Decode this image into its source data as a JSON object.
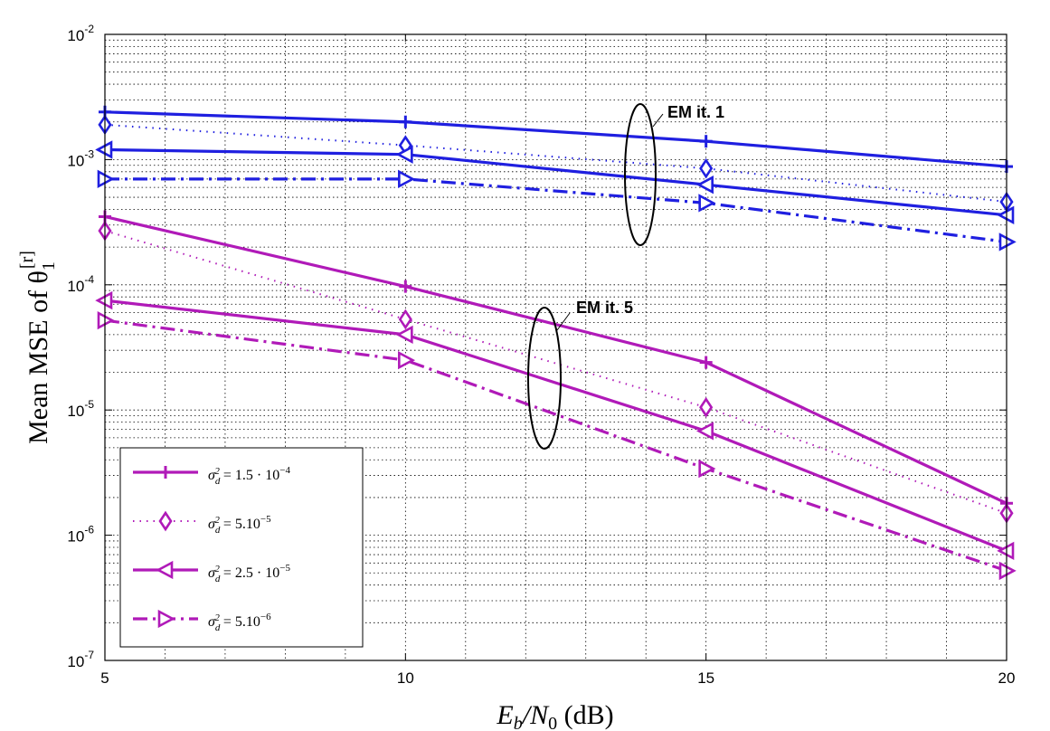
{
  "chart_data": {
    "type": "line",
    "xlabel": "E_b/N_0 (dB)",
    "xlabel_parts": {
      "main": "E",
      "sub1": "b",
      "slash": "/N",
      "sub2": "0",
      "unit": " (dB)"
    },
    "ylabel": "Mean MSE of θ_1^[r]",
    "ylabel_parts": {
      "main": "Mean MSE of θ",
      "sub": "1",
      "sup": "[r]"
    },
    "x": [
      5,
      10,
      15,
      20
    ],
    "xlim": [
      5,
      20
    ],
    "ylim": [
      1e-07,
      0.01
    ],
    "yscale": "log",
    "grid": true,
    "x_tick_labels": [
      "5",
      "10",
      "15",
      "20"
    ],
    "y_tick_labels": [
      {
        "base": "10",
        "exp": "-7"
      },
      {
        "base": "10",
        "exp": "-6"
      },
      {
        "base": "10",
        "exp": "-5"
      },
      {
        "base": "10",
        "exp": "-4"
      },
      {
        "base": "10",
        "exp": "-3"
      },
      {
        "base": "10",
        "exp": "-2"
      }
    ],
    "legend_position": "bottom-left",
    "legend": [
      {
        "label": "σ_d^2 = 1.5 · 10^-4",
        "parts": {
          "a": "σ",
          "sub": "d",
          "sup": "2",
          "b": " = 1.5 · 10",
          "exp": "−4"
        },
        "linestyle": "solid",
        "marker": "plus"
      },
      {
        "label": "σ_d^2 = 5.10^-5",
        "parts": {
          "a": "σ",
          "sub": "d",
          "sup": "2",
          "b": " = 5.10",
          "exp": "−5"
        },
        "linestyle": "dotted",
        "marker": "diamond"
      },
      {
        "label": "σ_d^2 = 2.5 · 10^-5",
        "parts": {
          "a": "σ",
          "sub": "d",
          "sup": "2",
          "b": " = 2.5 · 10",
          "exp": "−5"
        },
        "linestyle": "solid",
        "marker": "triangle-left"
      },
      {
        "label": "σ_d^2 = 5.10^-6",
        "parts": {
          "a": "σ",
          "sub": "d",
          "sup": "2",
          "b": " = 5.10",
          "exp": "−6"
        },
        "linestyle": "dashdot",
        "marker": "triangle-right"
      }
    ],
    "series": [
      {
        "name": "EM it. 1, σ_d^2 = 1.5·10^-4",
        "group": "EM it. 1",
        "color": "#1f1fe0",
        "linestyle": "solid",
        "marker": "plus",
        "values": [
          0.0024,
          0.002,
          0.0014,
          0.00088
        ]
      },
      {
        "name": "EM it. 1, σ_d^2 = 5·10^-5",
        "group": "EM it. 1",
        "color": "#1f1fe0",
        "linestyle": "dotted",
        "marker": "diamond",
        "values": [
          0.0019,
          0.0013,
          0.00085,
          0.00046
        ]
      },
      {
        "name": "EM it. 1, σ_d^2 = 2.5·10^-5",
        "group": "EM it. 1",
        "color": "#1f1fe0",
        "linestyle": "solid",
        "marker": "triangle-left",
        "values": [
          0.0012,
          0.0011,
          0.00063,
          0.00036
        ]
      },
      {
        "name": "EM it. 1, σ_d^2 = 5·10^-6",
        "group": "EM it. 1",
        "color": "#1f1fe0",
        "linestyle": "dashdot",
        "marker": "triangle-right",
        "values": [
          0.0007,
          0.0007,
          0.00045,
          0.00022
        ]
      },
      {
        "name": "EM it. 5, σ_d^2 = 1.5·10^-4",
        "group": "EM it. 5",
        "color": "#b01ab8",
        "linestyle": "solid",
        "marker": "plus",
        "values": [
          0.00035,
          9.7e-05,
          2.4e-05,
          1.8e-06
        ]
      },
      {
        "name": "EM it. 5, σ_d^2 = 5·10^-5",
        "group": "EM it. 5",
        "color": "#b01ab8",
        "linestyle": "dotted",
        "marker": "diamond",
        "values": [
          0.00027,
          5.3e-05,
          1.05e-05,
          1.5e-06
        ]
      },
      {
        "name": "EM it. 5, σ_d^2 = 2.5·10^-5",
        "group": "EM it. 5",
        "color": "#b01ab8",
        "linestyle": "solid",
        "marker": "triangle-left",
        "values": [
          7.5e-05,
          4e-05,
          6.8e-06,
          7.5e-07
        ]
      },
      {
        "name": "EM it. 5, σ_d^2 = 5·10^-6",
        "group": "EM it. 5",
        "color": "#b01ab8",
        "linestyle": "dashdot",
        "marker": "triangle-right",
        "values": [
          5.2e-05,
          2.5e-05,
          3.4e-06,
          5.2e-07
        ]
      }
    ],
    "annotations": [
      {
        "text": "EM it. 1",
        "ellipse_center": {
          "x": 13.95,
          "y": 0.00088
        }
      },
      {
        "text": "EM it. 5",
        "ellipse_center": {
          "x": 12.65,
          "y": 1.9e-05
        }
      }
    ],
    "legend_color": "#b01ab8"
  }
}
